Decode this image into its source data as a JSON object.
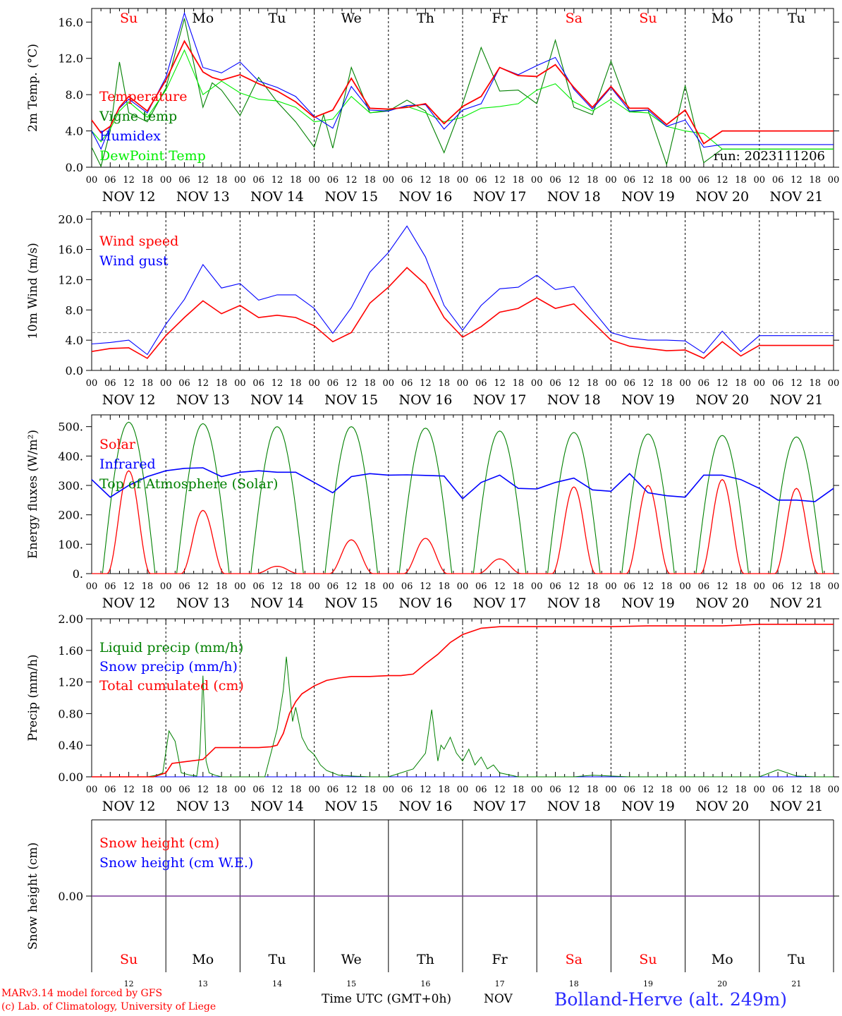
{
  "colors": {
    "temperature": "#ff0000",
    "vigne": "#008000",
    "humidex": "#0000ff",
    "dewpoint": "#00ee00",
    "wind_speed": "#ff0000",
    "wind_gust": "#0000ff",
    "solar": "#ff0000",
    "infrared": "#0000ff",
    "toa": "#008000",
    "liquid": "#008000",
    "snow_precip": "#0000ff",
    "cumulated": "#ff0000",
    "snow_cm": "#ff0000",
    "snow_we": "#0000ff",
    "weekend": "#ff0000",
    "weekday": "#000000"
  },
  "days": {
    "top": [
      "Su",
      "Mo",
      "Tu",
      "We",
      "Th",
      "Fr",
      "Sa",
      "Su",
      "Mo",
      "Tu"
    ],
    "bottom": [
      "Su",
      "Mo",
      "Tu",
      "We",
      "Th",
      "Fr",
      "Sa",
      "Su",
      "Mo",
      "Tu"
    ],
    "weekend": [
      true,
      false,
      false,
      false,
      false,
      false,
      true,
      true,
      false,
      false
    ],
    "dates": [
      "NOV 12",
      "NOV 13",
      "NOV 14",
      "NOV 15",
      "NOV 16",
      "NOV 17",
      "NOV 18",
      "NOV 19",
      "NOV 20",
      "NOV 21"
    ],
    "day_numbers": [
      "12",
      "13",
      "14",
      "15",
      "16",
      "17",
      "18",
      "19",
      "20",
      "21"
    ],
    "hour_ticks": [
      "00",
      "06",
      "12",
      "18"
    ],
    "last_tick": "00"
  },
  "footer": {
    "model": "MARv3.14 model forced by GFS",
    "lab": "(c) Lab. of Climatology, University of Liege",
    "time_label": "Time UTC (GMT+0h)",
    "month": "NOV",
    "station": "Bolland-Herve (alt. 249m)"
  },
  "chart_data": [
    {
      "type": "line",
      "ylabel": "2m Temp. (°C)",
      "ylim": [
        0,
        17.5
      ],
      "yticks": [
        "0.0",
        "4.0",
        "8.0",
        "12.0",
        "16.0"
      ],
      "annotation": "run: 2023111206",
      "x_unit": "hours since NOV 12 00 UTC",
      "series": [
        {
          "name": "Temperature",
          "x": [
            0,
            3,
            6,
            9,
            12,
            18,
            24,
            30,
            36,
            39,
            42,
            48,
            54,
            60,
            66,
            72,
            78,
            84,
            90,
            96,
            102,
            108,
            114,
            120,
            126,
            132,
            138,
            144,
            150,
            156,
            162,
            168,
            174,
            180,
            186,
            192,
            198,
            204,
            210,
            216,
            222,
            228,
            234,
            240
          ],
          "values": [
            5.2,
            3.8,
            4.5,
            6.6,
            7.8,
            6.2,
            9.6,
            13.9,
            10.5,
            9.9,
            9.6,
            10.2,
            9.2,
            8.4,
            7.2,
            5.5,
            6.3,
            9.8,
            6.5,
            6.4,
            6.6,
            7.0,
            4.8,
            6.7,
            7.8,
            11.0,
            10.1,
            10.0,
            11.3,
            8.8,
            6.6,
            8.9,
            6.5,
            6.5,
            4.7,
            6.3,
            2.6,
            4.0,
            4.0,
            4.0,
            4.0,
            4.0,
            4.0,
            4.0
          ]
        },
        {
          "name": "Vigne temp",
          "x": [
            0,
            3,
            6,
            9,
            12,
            15,
            18,
            24,
            30,
            36,
            39,
            42,
            48,
            54,
            60,
            66,
            72,
            75,
            78,
            84,
            90,
            96,
            102,
            108,
            114,
            120,
            126,
            132,
            138,
            144,
            150,
            156,
            162,
            168,
            174,
            180,
            186,
            192,
            198,
            204,
            210,
            216,
            222,
            228,
            234,
            240
          ],
          "values": [
            2.2,
            0.1,
            4.0,
            11.6,
            6.0,
            5.5,
            5.0,
            8.7,
            16.4,
            6.6,
            9.3,
            8.5,
            5.7,
            9.9,
            7.2,
            5.0,
            2.2,
            5.8,
            2.1,
            11.0,
            6.0,
            6.2,
            7.4,
            6.2,
            1.6,
            7.0,
            13.2,
            8.4,
            8.5,
            7.0,
            14.0,
            6.6,
            5.8,
            11.7,
            6.1,
            6.3,
            0.3,
            9.0,
            0.5,
            2.0,
            2.0,
            2.0,
            2.0,
            2.0,
            2.0,
            2.0
          ]
        },
        {
          "name": "Humidex",
          "x": [
            0,
            3,
            6,
            9,
            12,
            18,
            24,
            30,
            36,
            42,
            48,
            54,
            60,
            66,
            72,
            78,
            84,
            90,
            96,
            102,
            108,
            114,
            120,
            126,
            132,
            138,
            144,
            150,
            156,
            162,
            168,
            174,
            180,
            186,
            192,
            198,
            204,
            210,
            216,
            222,
            228,
            234,
            240
          ],
          "values": [
            4.0,
            2.0,
            4.5,
            6.5,
            7.5,
            6.0,
            9.9,
            17.0,
            11.0,
            10.4,
            11.6,
            9.5,
            8.8,
            7.8,
            5.6,
            4.3,
            8.9,
            6.3,
            6.2,
            6.8,
            6.9,
            4.2,
            6.3,
            7.0,
            11.0,
            10.2,
            11.2,
            12.1,
            8.6,
            6.4,
            8.8,
            6.2,
            6.3,
            4.5,
            5.2,
            2.2,
            2.5,
            2.5,
            2.5,
            2.5,
            2.5,
            2.5,
            2.5
          ]
        },
        {
          "name": "DewPoint Temp",
          "x": [
            0,
            3,
            6,
            9,
            12,
            18,
            24,
            30,
            36,
            42,
            48,
            54,
            60,
            66,
            72,
            78,
            84,
            90,
            96,
            102,
            108,
            114,
            120,
            126,
            132,
            138,
            144,
            150,
            156,
            162,
            168,
            174,
            180,
            186,
            192,
            198,
            204,
            210,
            216,
            222,
            228,
            234,
            240
          ],
          "values": [
            4.0,
            2.8,
            4.2,
            6.2,
            7.2,
            5.5,
            8.5,
            12.9,
            8.0,
            9.5,
            8.2,
            7.5,
            7.3,
            6.6,
            5.0,
            5.3,
            7.8,
            6.0,
            6.3,
            6.7,
            6.0,
            5.0,
            5.5,
            6.5,
            6.7,
            7.0,
            8.5,
            9.2,
            7.2,
            6.2,
            7.5,
            6.1,
            6.0,
            4.5,
            4.0,
            3.7,
            2.0,
            2.0,
            2.0,
            2.0,
            2.0,
            2.0,
            2.0
          ]
        }
      ]
    },
    {
      "type": "line",
      "ylabel": "10m Wind (m/s)",
      "ylim": [
        0,
        21
      ],
      "yticks": [
        "0.0",
        "4.0",
        "8.0",
        "12.0",
        "16.0",
        "20.0"
      ],
      "ref_line": 5,
      "x_unit": "hours since NOV 12 00 UTC",
      "series": [
        {
          "name": "Wind speed",
          "x": [
            0,
            6,
            12,
            18,
            24,
            30,
            36,
            42,
            48,
            54,
            60,
            66,
            72,
            78,
            84,
            90,
            96,
            102,
            108,
            114,
            120,
            126,
            132,
            138,
            144,
            150,
            156,
            162,
            168,
            174,
            180,
            186,
            192,
            198,
            204,
            210,
            216,
            222,
            228,
            234,
            240
          ],
          "values": [
            2.5,
            2.9,
            3.0,
            1.6,
            4.6,
            7.0,
            9.2,
            7.5,
            8.6,
            7.0,
            7.3,
            7.0,
            5.9,
            3.8,
            5.0,
            8.9,
            11.0,
            13.6,
            11.4,
            7.0,
            4.4,
            5.8,
            7.7,
            8.2,
            9.6,
            8.2,
            8.8,
            6.4,
            4.0,
            3.2,
            2.9,
            2.6,
            2.7,
            1.6,
            3.8,
            1.9,
            3.3,
            3.3,
            3.3,
            3.3,
            3.3
          ]
        },
        {
          "name": "Wind gust",
          "x": [
            0,
            6,
            12,
            18,
            24,
            30,
            36,
            42,
            48,
            54,
            60,
            66,
            72,
            78,
            84,
            90,
            96,
            102,
            108,
            114,
            120,
            126,
            132,
            138,
            144,
            150,
            156,
            162,
            168,
            174,
            180,
            186,
            192,
            198,
            204,
            210,
            216,
            222,
            228,
            234,
            240
          ],
          "values": [
            3.5,
            3.7,
            4.0,
            2.1,
            6.1,
            9.4,
            14.0,
            10.9,
            11.5,
            9.3,
            10.0,
            10.0,
            8.2,
            4.9,
            8.3,
            13.0,
            15.6,
            19.1,
            15.0,
            8.6,
            5.3,
            8.6,
            10.8,
            11.0,
            12.6,
            10.7,
            11.1,
            8.0,
            5.0,
            4.3,
            4.0,
            4.0,
            3.9,
            2.3,
            5.2,
            2.5,
            4.6,
            4.6,
            4.6,
            4.6,
            4.6
          ]
        }
      ]
    },
    {
      "type": "line",
      "ylabel": "Energy fluxes (W/m²)",
      "ylim": [
        0,
        540
      ],
      "yticks": [
        "0.",
        "100.",
        "200.",
        "300.",
        "400.",
        "500."
      ],
      "x_unit": "hours since NOV 12 00 UTC",
      "peaks": {
        "days": [
          0,
          1,
          2,
          3,
          4,
          5,
          6,
          7,
          8,
          9
        ],
        "toa_peak": [
          515,
          510,
          500,
          500,
          495,
          485,
          480,
          475,
          470,
          465
        ],
        "solar_peak": [
          350,
          215,
          25,
          115,
          120,
          50,
          295,
          300,
          320,
          290
        ]
      },
      "series": [
        {
          "name": "Solar",
          "values_daily_peak": [
            350,
            215,
            25,
            115,
            120,
            50,
            295,
            300,
            320,
            290
          ]
        },
        {
          "name": "Infrared",
          "x": [
            0,
            6,
            12,
            18,
            24,
            30,
            36,
            42,
            48,
            54,
            60,
            66,
            72,
            78,
            84,
            90,
            96,
            102,
            108,
            114,
            120,
            126,
            132,
            138,
            144,
            150,
            156,
            162,
            168,
            174,
            180,
            186,
            192,
            198,
            204,
            210,
            216,
            222,
            228,
            234,
            240
          ],
          "values": [
            320,
            260,
            300,
            330,
            350,
            358,
            360,
            330,
            345,
            350,
            345,
            345,
            310,
            275,
            330,
            340,
            335,
            336,
            334,
            332,
            255,
            310,
            335,
            290,
            288,
            310,
            325,
            285,
            280,
            340,
            275,
            265,
            260,
            335,
            335,
            320,
            290,
            250,
            250,
            245,
            290
          ]
        },
        {
          "name": "Top of Atmosphere (Solar)",
          "values_daily_peak": [
            515,
            510,
            500,
            500,
            495,
            485,
            480,
            475,
            470,
            465
          ]
        }
      ]
    },
    {
      "type": "line",
      "ylabel": "Precip (mm/h)",
      "ylim": [
        0,
        2.0
      ],
      "yticks": [
        "0.00",
        "0.40",
        "0.80",
        "1.20",
        "1.60",
        "2.00"
      ],
      "x_unit": "hours since NOV 12 00 UTC",
      "series": [
        {
          "name": "Liquid precip (mm/h)",
          "x": [
            0,
            18,
            21,
            23,
            25,
            27,
            29,
            32,
            34,
            35,
            36,
            37,
            38,
            40,
            42,
            48,
            56,
            60,
            62,
            63,
            64,
            65,
            66,
            68,
            70,
            72,
            74,
            76,
            78,
            80,
            84,
            90,
            96,
            104,
            108,
            110,
            112,
            113,
            114,
            116,
            118,
            120,
            122,
            124,
            126,
            128,
            130,
            132,
            138,
            144,
            150,
            156,
            162,
            168,
            174,
            180,
            186,
            192,
            198,
            204,
            210,
            216,
            222,
            228,
            234,
            240
          ],
          "values": [
            0,
            0,
            0.02,
            0.05,
            0.58,
            0.45,
            0.05,
            0.02,
            0.01,
            0.3,
            1.28,
            0.2,
            0.05,
            0.02,
            0,
            0,
            0,
            0.6,
            1.1,
            1.52,
            1.1,
            0.7,
            0.88,
            0.5,
            0.35,
            0.28,
            0.15,
            0.08,
            0.05,
            0.02,
            0.01,
            0,
            0,
            0.1,
            0.3,
            0.85,
            0.2,
            0.4,
            0.35,
            0.5,
            0.3,
            0.2,
            0.35,
            0.15,
            0.25,
            0.1,
            0.15,
            0.05,
            0,
            0,
            0,
            0,
            0.02,
            0.01,
            0,
            0,
            0,
            0,
            0,
            0,
            0,
            0,
            0.09,
            0.01,
            0,
            0
          ]
        },
        {
          "name": "Snow precip (mm/h)",
          "x": [
            0,
            240
          ],
          "values": [
            0,
            0
          ]
        },
        {
          "name": "Total cumulated (cm)",
          "x": [
            0,
            20,
            24,
            26,
            30,
            36,
            40,
            48,
            54,
            58,
            60,
            62,
            64,
            66,
            68,
            72,
            76,
            80,
            84,
            90,
            96,
            100,
            104,
            108,
            112,
            116,
            120,
            126,
            132,
            144,
            156,
            168,
            180,
            192,
            204,
            216,
            228,
            240
          ],
          "values": [
            0,
            0,
            0.05,
            0.17,
            0.19,
            0.22,
            0.37,
            0.37,
            0.37,
            0.38,
            0.4,
            0.55,
            0.8,
            0.95,
            1.05,
            1.15,
            1.22,
            1.25,
            1.27,
            1.27,
            1.28,
            1.28,
            1.3,
            1.43,
            1.55,
            1.7,
            1.8,
            1.88,
            1.9,
            1.9,
            1.9,
            1.9,
            1.91,
            1.91,
            1.91,
            1.93,
            1.93,
            1.93
          ]
        }
      ]
    },
    {
      "type": "line",
      "ylabel": "Snow height (cm)",
      "ylim": [
        -1,
        1
      ],
      "yticks": [
        "0.00"
      ],
      "x_unit": "hours since NOV 12 00 UTC",
      "series": [
        {
          "name": "Snow height (cm)",
          "x": [
            0,
            240
          ],
          "values": [
            0,
            0
          ]
        },
        {
          "name": "Snow height (cm W.E.)",
          "x": [
            0,
            240
          ],
          "values": [
            0,
            0
          ]
        }
      ]
    }
  ]
}
